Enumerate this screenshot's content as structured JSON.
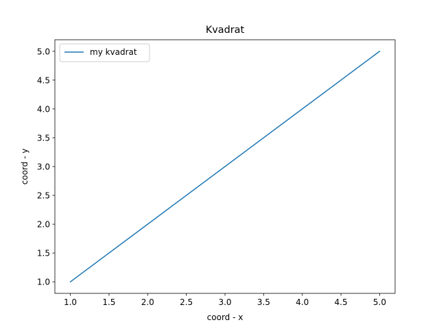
{
  "chart_data": {
    "type": "line",
    "title": "Kvadrat",
    "xlabel": "coord - x",
    "ylabel": "coord - y",
    "xlim": [
      0.8,
      5.2
    ],
    "ylim": [
      0.8,
      5.2
    ],
    "xticks": [
      1.0,
      1.5,
      2.0,
      2.5,
      3.0,
      3.5,
      4.0,
      4.5,
      5.0
    ],
    "yticks": [
      1.0,
      1.5,
      2.0,
      2.5,
      3.0,
      3.5,
      4.0,
      4.5,
      5.0
    ],
    "xtick_labels": [
      "1.0",
      "1.5",
      "2.0",
      "2.5",
      "3.0",
      "3.5",
      "4.0",
      "4.5",
      "5.0"
    ],
    "ytick_labels": [
      "1.0",
      "1.5",
      "2.0",
      "2.5",
      "3.0",
      "3.5",
      "4.0",
      "4.5",
      "5.0"
    ],
    "grid": false,
    "legend_position": "top-left",
    "series": [
      {
        "name": "my kvadrat",
        "color": "#1f77b4",
        "x": [
          1,
          2,
          3,
          4,
          5
        ],
        "y": [
          1,
          2,
          3,
          4,
          5
        ]
      }
    ]
  }
}
